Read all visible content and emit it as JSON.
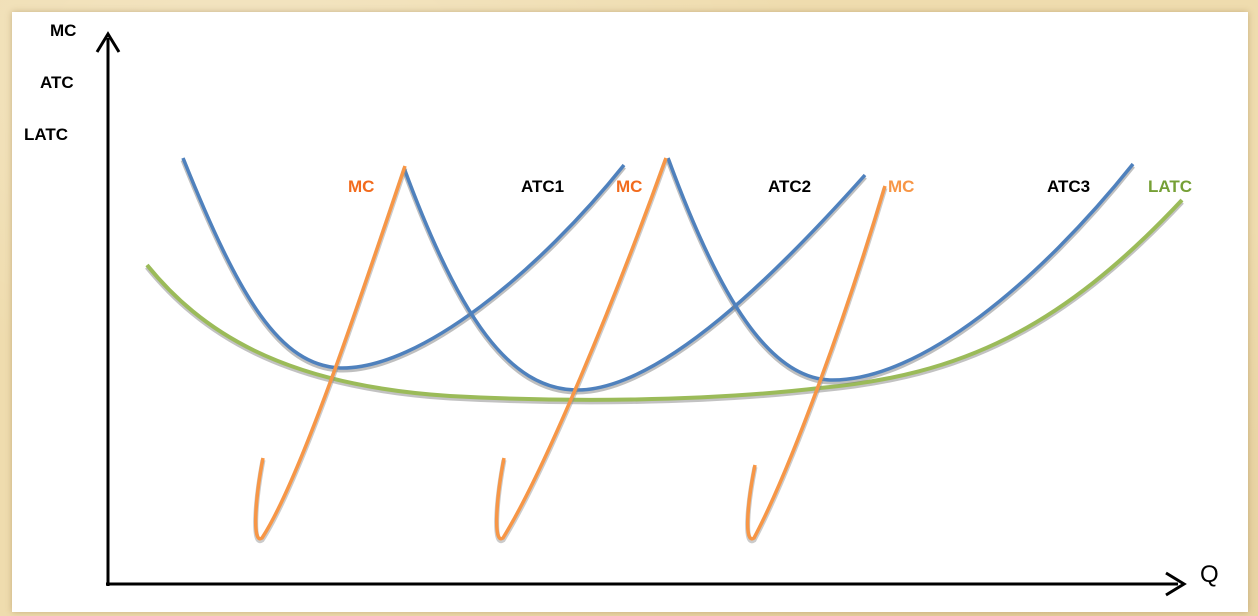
{
  "y_axis_labels": [
    "MC",
    "ATC",
    "LATC"
  ],
  "x_axis_label": "Q",
  "curve_labels": {
    "mc1": "MC",
    "atc1": "ATC1",
    "mc2": "MC",
    "atc2": "ATC2",
    "mc3": "MC",
    "atc3": "ATC3",
    "latc": "LATC"
  },
  "colors": {
    "atc": "#4f81bd",
    "mc": "#f79646",
    "latc": "#9bbb59",
    "label_dark": "#000000",
    "label_mc": "#f26b1d",
    "label_latc": "#76a036"
  }
}
